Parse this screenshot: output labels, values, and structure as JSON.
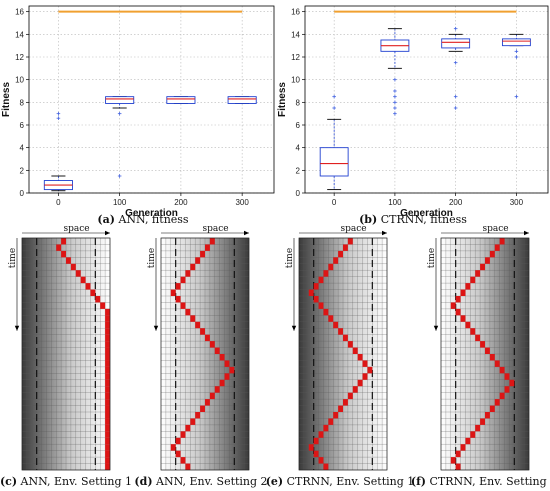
{
  "chart_data": [
    {
      "type": "box",
      "panel": "a",
      "caption_id": "(a)",
      "caption_text": "ANN, fitness",
      "xlabel": "Generation",
      "ylabel": "Fitness",
      "categories": [
        "0",
        "100",
        "200",
        "300"
      ],
      "yticks": [
        "0",
        "2",
        "4",
        "6",
        "8",
        "10",
        "12",
        "14",
        "16"
      ],
      "ylim": [
        0,
        16.5
      ],
      "grid": true,
      "reference_line": {
        "value": 16,
        "color": "#f0a030"
      },
      "boxes": [
        {
          "q1": 0.3,
          "median": 0.7,
          "q3": 1.1,
          "whisker_low": 0.2,
          "whisker_high": 1.5,
          "outliers": [
            6.6,
            7.0
          ]
        },
        {
          "q1": 7.9,
          "median": 8.3,
          "q3": 8.5,
          "whisker_low": 7.5,
          "whisker_high": 8.5,
          "outliers": [
            7.0,
            1.5
          ]
        },
        {
          "q1": 7.9,
          "median": 8.3,
          "q3": 8.5,
          "whisker_low": 7.9,
          "whisker_high": 8.5,
          "outliers": []
        },
        {
          "q1": 7.9,
          "median": 8.3,
          "q3": 8.5,
          "whisker_low": 7.9,
          "whisker_high": 8.5,
          "outliers": []
        }
      ]
    },
    {
      "type": "box",
      "panel": "b",
      "caption_id": "(b)",
      "caption_text": "CTRNN, fitness",
      "xlabel": "Generation",
      "ylabel": "Fitness",
      "categories": [
        "0",
        "100",
        "200",
        "300"
      ],
      "yticks": [
        "0",
        "2",
        "4",
        "6",
        "8",
        "10",
        "12",
        "14",
        "16"
      ],
      "ylim": [
        0,
        16.5
      ],
      "grid": true,
      "reference_line": {
        "value": 16,
        "color": "#f0a030"
      },
      "boxes": [
        {
          "q1": 1.5,
          "median": 2.6,
          "q3": 4.0,
          "whisker_low": 0.3,
          "whisker_high": 6.5,
          "outliers": [
            7.5,
            8.5
          ]
        },
        {
          "q1": 12.5,
          "median": 13.0,
          "q3": 13.5,
          "whisker_low": 11.0,
          "whisker_high": 14.5,
          "outliers": [
            7.0,
            7.5,
            8.0,
            8.5,
            9.0,
            10.0
          ]
        },
        {
          "q1": 12.8,
          "median": 13.3,
          "q3": 13.6,
          "whisker_low": 12.5,
          "whisker_high": 14.0,
          "outliers": [
            7.5,
            8.5,
            11.5,
            14.5
          ]
        },
        {
          "q1": 13.0,
          "median": 13.4,
          "q3": 13.6,
          "whisker_low": 13.0,
          "whisker_high": 14.0,
          "outliers": [
            8.5,
            12.0,
            12.5
          ]
        }
      ]
    },
    {
      "type": "heatmap",
      "panel": "c",
      "caption_id": "(c)",
      "caption_text": "ANN, Env. Setting 1",
      "xlabel": "space",
      "ylabel": "time",
      "columns": 18,
      "rows": 36,
      "gradient": "dark-left",
      "dashed_columns": [
        3,
        15
      ],
      "trajectory": [
        8,
        7,
        8,
        9,
        10,
        11,
        12,
        13,
        14,
        15,
        16,
        17,
        17,
        17,
        17,
        17,
        17,
        17,
        17,
        17,
        17,
        17,
        17,
        17,
        17,
        17,
        17,
        17,
        17,
        17,
        17,
        17,
        17,
        17,
        17,
        17
      ]
    },
    {
      "type": "heatmap",
      "panel": "d",
      "caption_id": "(d)",
      "caption_text": "ANN, Env. Setting 2",
      "xlabel": "space",
      "ylabel": "time",
      "columns": 18,
      "rows": 36,
      "gradient": "dark-right",
      "dashed_columns": [
        3,
        15
      ],
      "trajectory": [
        10,
        9,
        8,
        7,
        6,
        5,
        4,
        3,
        2,
        3,
        4,
        5,
        6,
        7,
        8,
        9,
        10,
        11,
        12,
        13,
        14,
        13,
        12,
        11,
        10,
        9,
        8,
        7,
        6,
        5,
        4,
        3,
        2,
        3,
        4,
        5
      ]
    },
    {
      "type": "heatmap",
      "panel": "e",
      "caption_id": "(e)",
      "caption_text": "CTRNN, Env. Setting 1",
      "xlabel": "space",
      "ylabel": "time",
      "columns": 18,
      "rows": 36,
      "gradient": "dark-left",
      "dashed_columns": [
        3,
        15
      ],
      "trajectory": [
        10,
        9,
        8,
        7,
        6,
        5,
        4,
        3,
        2,
        3,
        4,
        5,
        6,
        7,
        8,
        9,
        10,
        11,
        12,
        13,
        14,
        13,
        12,
        11,
        10,
        9,
        8,
        7,
        6,
        5,
        4,
        3,
        2,
        3,
        4,
        5
      ]
    },
    {
      "type": "heatmap",
      "panel": "f",
      "caption_id": "(f)",
      "caption_text": "CTRNN, Env. Setting 2",
      "xlabel": "space",
      "ylabel": "time",
      "columns": 18,
      "rows": 36,
      "gradient": "dark-right",
      "dashed_columns": [
        3,
        15
      ],
      "trajectory": [
        12,
        11,
        10,
        9,
        8,
        7,
        6,
        5,
        4,
        3,
        2,
        3,
        4,
        5,
        6,
        7,
        8,
        9,
        10,
        11,
        12,
        13,
        14,
        13,
        12,
        11,
        10,
        9,
        8,
        7,
        6,
        5,
        4,
        3,
        2,
        3
      ]
    }
  ]
}
